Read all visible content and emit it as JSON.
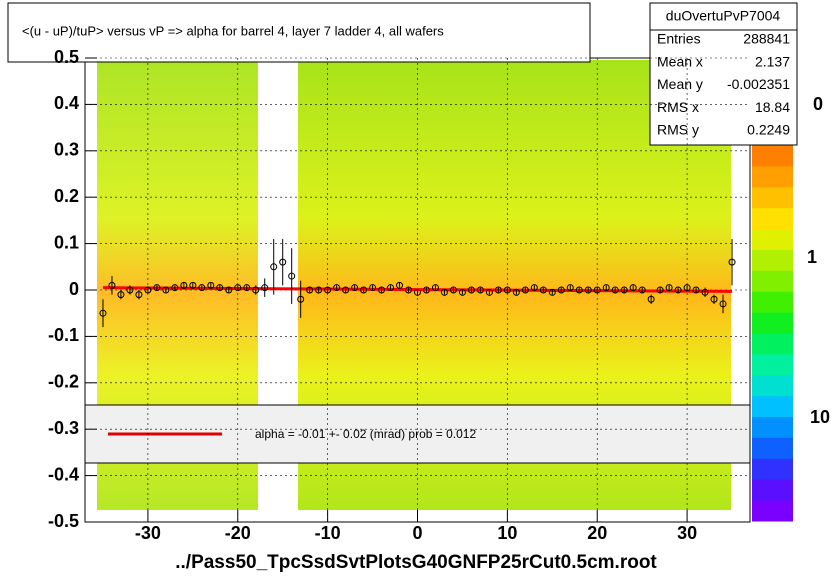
{
  "chart_data": {
    "type": "profile",
    "title": "<(u - uP)/tuP> versus   vP => alpha for barrel 4, layer 7 ladder 4, all wafers",
    "x_label": "../Pass50_TpcSsdSvtPlotsG40GNFP25rCut0.5cm.root",
    "xlim": [
      -37,
      37
    ],
    "ylim": [
      -0.5,
      0.5
    ],
    "xticks": [
      -30,
      -20,
      -10,
      0,
      10,
      20,
      30
    ],
    "yticks": [
      -0.5,
      -0.4,
      -0.3,
      -0.2,
      -0.1,
      0,
      0.1,
      0.2,
      0.3,
      0.4,
      0.5
    ],
    "grid": true,
    "x": [
      -35,
      -34,
      -33,
      -32,
      -31,
      -30,
      -29,
      -28,
      -27,
      -26,
      -25,
      -24,
      -23,
      -22,
      -21,
      -20,
      -19,
      -18,
      -17,
      -16,
      -15,
      -14,
      -13,
      -12,
      -11,
      -10,
      -9,
      -8,
      -7,
      -6,
      -5,
      -4,
      -3,
      -2,
      -1,
      0,
      1,
      2,
      3,
      4,
      5,
      6,
      7,
      8,
      9,
      10,
      11,
      12,
      13,
      14,
      15,
      16,
      17,
      18,
      19,
      20,
      21,
      22,
      23,
      24,
      25,
      26,
      27,
      28,
      29,
      30,
      31,
      32,
      33,
      34,
      35
    ],
    "values": [
      -0.05,
      0.01,
      -0.01,
      0.0,
      -0.01,
      0.0,
      0.005,
      0.0,
      0.005,
      0.01,
      0.01,
      0.005,
      0.01,
      0.005,
      0.0,
      0.005,
      0.005,
      0.0,
      0.005,
      0.05,
      0.06,
      0.03,
      -0.02,
      0.0,
      0.0,
      0.0,
      0.005,
      0.0,
      0.005,
      0.0,
      0.005,
      0.0,
      0.005,
      0.01,
      0.0,
      -0.005,
      0.0,
      0.005,
      -0.005,
      0.0,
      -0.005,
      0.0,
      0.0,
      -0.005,
      0.0,
      0.0,
      -0.005,
      0.0,
      0.005,
      0.0,
      -0.005,
      0.0,
      0.005,
      0.0,
      0.0,
      0.0,
      0.005,
      0.0,
      0.0,
      0.005,
      0.0,
      -0.02,
      0.0,
      0.005,
      0.0,
      0.005,
      0.0,
      -0.005,
      -0.02,
      -0.03,
      0.06
    ],
    "errors": [
      0.03,
      0.02,
      0.01,
      0.01,
      0.01,
      0.005,
      0.005,
      0.005,
      0.005,
      0.005,
      0.005,
      0.005,
      0.005,
      0.005,
      0.005,
      0.005,
      0.005,
      0.01,
      0.02,
      0.06,
      0.05,
      0.06,
      0.04,
      0.005,
      0.005,
      0.005,
      0.005,
      0.005,
      0.005,
      0.005,
      0.005,
      0.005,
      0.005,
      0.005,
      0.005,
      0.005,
      0.005,
      0.005,
      0.005,
      0.005,
      0.005,
      0.005,
      0.005,
      0.005,
      0.005,
      0.005,
      0.005,
      0.005,
      0.005,
      0.005,
      0.005,
      0.005,
      0.005,
      0.005,
      0.005,
      0.005,
      0.005,
      0.005,
      0.005,
      0.005,
      0.005,
      0.01,
      0.005,
      0.005,
      0.005,
      0.005,
      0.005,
      0.01,
      0.01,
      0.02,
      0.05
    ],
    "marker_color": "#000000",
    "fit": {
      "x": [
        -35,
        35
      ],
      "values": [
        0.005,
        -0.003
      ],
      "color": "#ff0000"
    },
    "legend_text": "alpha =   -0.01 +-  0.02 (mrad) prob = 0.012",
    "stats": {
      "name": "duOvertuPvP7004",
      "rows": [
        {
          "label": "Entries",
          "value": 288841
        },
        {
          "label": "Mean x",
          "value": 2.137
        },
        {
          "label": "Mean y",
          "value": -0.002351
        },
        {
          "label": "RMS x",
          "value": 18.84
        },
        {
          "label": "RMS y",
          "value": 0.2249
        }
      ]
    },
    "colorbar_labels": [
      "0",
      "1",
      "10"
    ]
  }
}
